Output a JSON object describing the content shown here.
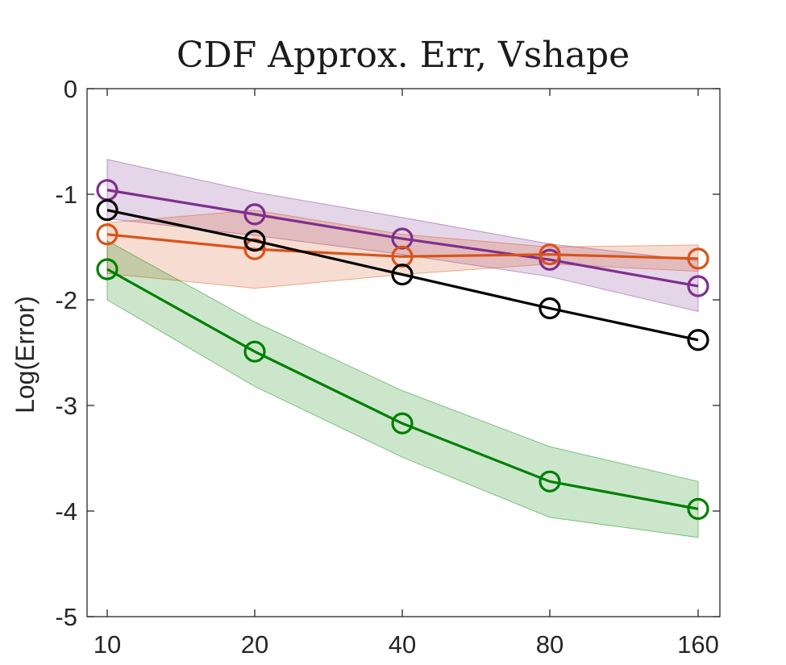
{
  "chart_data": {
    "type": "line",
    "title": "CDF Approx. Err, Vshape",
    "xlabel": "",
    "ylabel": "Log(Error)",
    "x": [
      10,
      20,
      40,
      80,
      160
    ],
    "x_tick_labels": [
      "10",
      "20",
      "40",
      "80",
      "160"
    ],
    "ylim": [
      -5,
      0
    ],
    "y_ticks": [
      0,
      -1,
      -2,
      -3,
      -4,
      -5
    ],
    "y_tick_labels": [
      "0",
      "-1",
      "-2",
      "-3",
      "-4",
      "-5"
    ],
    "grid": false,
    "marker": "circle",
    "series": [
      {
        "name": "purple",
        "color": "#7e2f8e",
        "values": [
          -0.96,
          -1.19,
          -1.42,
          -1.62,
          -1.87
        ],
        "band_upper": [
          -0.67,
          -0.98,
          -1.22,
          -1.47,
          -1.63
        ],
        "band_lower": [
          -1.23,
          -1.39,
          -1.57,
          -1.78,
          -2.11
        ]
      },
      {
        "name": "orange",
        "color": "#d95319",
        "values": [
          -1.38,
          -1.52,
          -1.59,
          -1.57,
          -1.61
        ],
        "band_upper": [
          -1.27,
          -1.15,
          -1.38,
          -1.5,
          -1.48
        ],
        "band_lower": [
          -1.75,
          -1.89,
          -1.76,
          -1.66,
          -1.73
        ]
      },
      {
        "name": "black",
        "color": "#000000",
        "values": [
          -1.15,
          -1.44,
          -1.76,
          -2.08,
          -2.38
        ]
      },
      {
        "name": "green",
        "color": "#008000",
        "values": [
          -1.71,
          -2.49,
          -3.17,
          -3.72,
          -3.98
        ],
        "band_upper": [
          -1.44,
          -2.21,
          -2.86,
          -3.39,
          -3.72
        ],
        "band_lower": [
          -2.0,
          -2.82,
          -3.49,
          -4.06,
          -4.25
        ]
      }
    ]
  }
}
